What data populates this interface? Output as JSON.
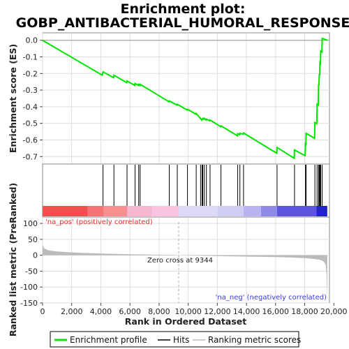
{
  "chart_data": {
    "type": "line",
    "title_line1": "Enrichment plot:",
    "title_line2": "GOBP_ANTIBACTERIAL_HUMORAL_RESPONSE",
    "xlabel": "Rank in Ordered Dataset",
    "ylabel_top": "Enrichment score (ES)",
    "ylabel_bottom": "Ranked list metric (PreRanked)",
    "x_max": 19700,
    "x_ticks": [
      0,
      2000,
      4000,
      6000,
      8000,
      10000,
      12000,
      14000,
      16000,
      18000,
      20000
    ],
    "x_tick_labels": [
      "0",
      "2,000",
      "4,000",
      "6,000",
      "8,000",
      "10,000",
      "12,000",
      "14,000",
      "16,000",
      "18,000",
      "20,000"
    ],
    "es_ylim": [
      -0.745,
      0.045
    ],
    "es_ticks": [
      0.0,
      -0.1,
      -0.2,
      -0.3,
      -0.4,
      -0.5,
      -0.6,
      -0.7
    ],
    "es_tick_labels": [
      "0.0",
      "-0.1",
      "-0.2",
      "-0.3",
      "-0.4",
      "-0.5",
      "-0.6",
      "-0.7"
    ],
    "metric_ylim": [
      -150,
      120
    ],
    "metric_ticks": [
      100,
      50,
      0,
      -50,
      -100,
      -150
    ],
    "metric_tick_labels": [
      "100",
      "50",
      "0",
      "-50",
      "-100",
      "-150"
    ],
    "hits": [
      4150,
      4900,
      5800,
      6350,
      6600,
      6700,
      8700,
      9250,
      9950,
      10550,
      10850,
      10950,
      11000,
      11100,
      11250,
      11500,
      12250,
      13400,
      13550,
      13800,
      16100,
      17300,
      18050,
      18100,
      18700,
      18850,
      18950,
      19000,
      19050,
      19100,
      19200
    ],
    "es_curve": {
      "x": [
        0,
        4100,
        4150,
        4880,
        4900,
        5780,
        5800,
        6330,
        6350,
        6580,
        6600,
        6680,
        6700,
        8680,
        8700,
        9230,
        9250,
        9930,
        9950,
        10530,
        10550,
        10830,
        10850,
        10930,
        10950,
        10980,
        11000,
        11080,
        11100,
        11230,
        11250,
        11480,
        11500,
        12230,
        12250,
        13380,
        13400,
        13530,
        13550,
        13780,
        13800,
        16080,
        16100,
        17280,
        17300,
        18030,
        18050,
        18080,
        18100,
        18680,
        18700,
        18830,
        18850,
        18930,
        18950,
        18980,
        19000,
        19030,
        19050,
        19080,
        19100,
        19180,
        19200,
        19550
      ],
      "y": [
        0.0,
        -0.21,
        -0.19,
        -0.225,
        -0.21,
        -0.255,
        -0.245,
        -0.272,
        -0.26,
        -0.272,
        -0.265,
        -0.272,
        -0.265,
        -0.37,
        -0.365,
        -0.39,
        -0.385,
        -0.42,
        -0.415,
        -0.445,
        -0.44,
        -0.47,
        -0.47,
        -0.48,
        -0.475,
        -0.475,
        -0.47,
        -0.475,
        -0.47,
        -0.48,
        -0.475,
        -0.485,
        -0.48,
        -0.52,
        -0.515,
        -0.575,
        -0.562,
        -0.568,
        -0.56,
        -0.565,
        -0.558,
        -0.68,
        -0.645,
        -0.71,
        -0.66,
        -0.695,
        -0.625,
        -0.627,
        -0.56,
        -0.59,
        -0.495,
        -0.502,
        -0.385,
        -0.39,
        -0.265,
        -0.27,
        -0.205,
        -0.21,
        -0.135,
        -0.14,
        -0.065,
        -0.07,
        0.012,
        0.0
      ]
    },
    "metric_profile": {
      "x": [
        0,
        100,
        400,
        1000,
        2000,
        3000,
        4000,
        5000,
        6000,
        7000,
        8000,
        9000,
        9344,
        10000,
        11000,
        12000,
        13000,
        14000,
        15000,
        16000,
        17000,
        18000,
        18500,
        19000,
        19200,
        19350,
        19450,
        19500,
        19550
      ],
      "y": [
        34,
        22,
        15,
        12,
        9,
        7,
        5.5,
        4.2,
        3.2,
        2.4,
        1.6,
        0.7,
        0,
        -0.9,
        -1.8,
        -2.6,
        -3.4,
        -4.2,
        -5.0,
        -5.8,
        -7.0,
        -9.0,
        -11.0,
        -14.0,
        -17.0,
        -22.0,
        -32.0,
        -60.0,
        -140.0
      ]
    },
    "zero_cross_rank": 9344,
    "zero_cross_label": "Zero cross at 9344",
    "pos_label": "'na_pos' (positively correlated)",
    "neg_label": "'na_neg' (negatively correlated)",
    "legend": [
      "Enrichment profile",
      "Hits",
      "Ranking metric scores"
    ],
    "colors": {
      "es_line": "#00e600",
      "hit": "#000000",
      "metric_fill": "#bbbbbb",
      "zero_line": "#aaaaaa",
      "grid": "#dddddd",
      "pos": "#e0302a",
      "neg": "#3a3ad8"
    },
    "heatbar_segments": [
      {
        "x0": 0,
        "x1": 3100,
        "color": "#f04f50"
      },
      {
        "x0": 3100,
        "x1": 4200,
        "color": "#f47475"
      },
      {
        "x0": 4200,
        "x1": 5800,
        "color": "#f78f91"
      },
      {
        "x0": 5800,
        "x1": 7500,
        "color": "#f5b6cf"
      },
      {
        "x0": 7500,
        "x1": 9344,
        "color": "#fac3e0"
      },
      {
        "x0": 9344,
        "x1": 12000,
        "color": "#dcdaf6"
      },
      {
        "x0": 12000,
        "x1": 13800,
        "color": "#cfcdf4"
      },
      {
        "x0": 13800,
        "x1": 15000,
        "color": "#b7b4f0"
      },
      {
        "x0": 15000,
        "x1": 16100,
        "color": "#8f8ae8"
      },
      {
        "x0": 16100,
        "x1": 18800,
        "color": "#5c54dc"
      },
      {
        "x0": 18800,
        "x1": 19550,
        "color": "#2222c8"
      }
    ]
  }
}
